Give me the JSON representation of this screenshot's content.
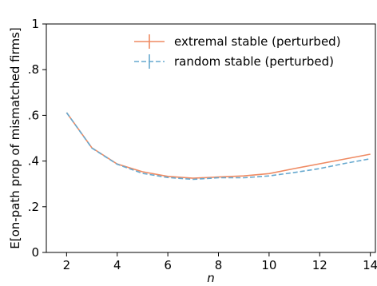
{
  "chart_data": {
    "type": "line",
    "title": "",
    "xlabel": "n",
    "ylabel": "E[on-path prop of mismatched firms]",
    "xlim": [
      1.2,
      14.2
    ],
    "ylim": [
      0,
      1
    ],
    "xticks": [
      2,
      4,
      6,
      8,
      10,
      12,
      14
    ],
    "xtick_labels": [
      "2",
      "4",
      "6",
      "8",
      "10",
      "12",
      "14"
    ],
    "yticks": [
      0,
      0.2,
      0.4,
      0.6,
      0.8,
      1
    ],
    "ytick_labels": [
      "0",
      ".2",
      ".4",
      ".6",
      ".8",
      "1"
    ],
    "grid": false,
    "legend_position": "top-right",
    "x": [
      2,
      3,
      4,
      5,
      6,
      7,
      8,
      9,
      10,
      11,
      12,
      13,
      14
    ],
    "series": [
      {
        "name": "extremal stable (perturbed)",
        "color": "#ef8a62",
        "dash": "solid",
        "values": [
          0.612,
          0.458,
          0.387,
          0.353,
          0.333,
          0.325,
          0.33,
          0.335,
          0.345,
          0.367,
          0.388,
          0.409,
          0.43
        ]
      },
      {
        "name": "random stable (perturbed)",
        "color": "#67a9cf",
        "dash": "dashed",
        "values": [
          0.612,
          0.457,
          0.386,
          0.346,
          0.328,
          0.32,
          0.327,
          0.327,
          0.335,
          0.35,
          0.367,
          0.39,
          0.41
        ]
      }
    ]
  }
}
